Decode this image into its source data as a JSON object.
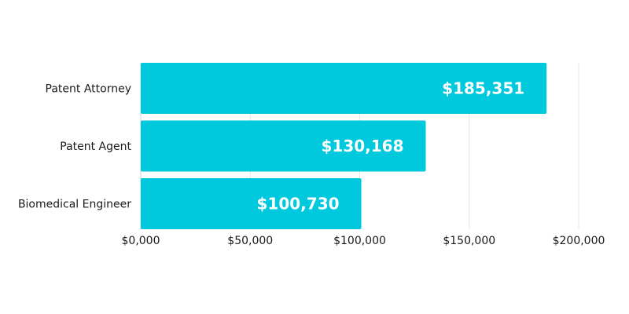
{
  "chart_data": {
    "type": "bar",
    "orientation": "horizontal",
    "categories": [
      "Patent Attorney",
      "Patent Agent",
      "Biomedical Engineer"
    ],
    "values": [
      185351,
      130168,
      100730
    ],
    "value_labels": [
      "$185,351",
      "$130,168",
      "$100,730"
    ],
    "xlim": [
      0,
      200000
    ],
    "x_ticks": [
      0,
      50000,
      100000,
      150000,
      200000
    ],
    "x_tick_labels": [
      "$0,000",
      "$50,000",
      "$100,000",
      "$150,000",
      "$200,000"
    ],
    "grid": "vertical",
    "bar_color": "#00c9dd",
    "title": "",
    "xlabel": "",
    "ylabel": ""
  }
}
